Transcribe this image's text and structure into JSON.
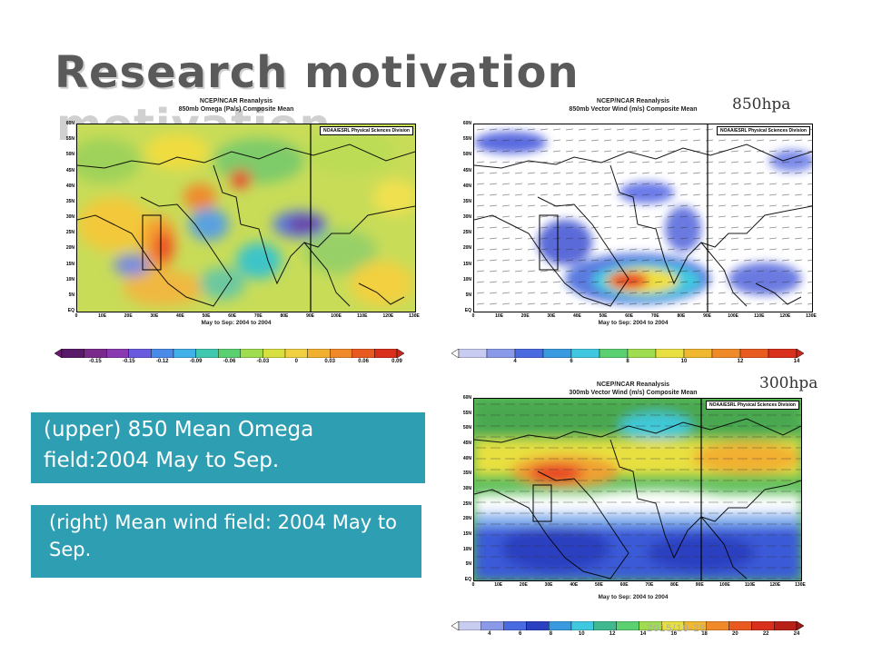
{
  "slide": {
    "title": "Research motivation",
    "label_850": "850hpa",
    "label_300": "300hpa",
    "caption_upper": "(upper) 850 Mean Omega field:2004 May to Sep.",
    "caption_right": "(right) Mean wind field: 2004 May to Sep.",
    "footer": "2015/10-28"
  },
  "panels": {
    "omega": {
      "title_line1": "NCEP/NCAR Reanalysis",
      "title_line2": "850mb Omega (Pa/s) Composite Mean",
      "credit": "NOAA/ESRL Physical Sciences Division",
      "period": "May to Sep: 2004 to 2004",
      "colorbar_labels": [
        "-0.15",
        "-0.15",
        "-0.12",
        "-0.09",
        "-0.06",
        "-0.03",
        "0",
        "0.03",
        "0.06",
        "0.09"
      ]
    },
    "wind850": {
      "title_line1": "NCEP/NCAR Reanalysis",
      "title_line2": "850mb Vector Wind (m/s) Composite Mean",
      "credit": "NOAA/ESRL Physical Sciences Division",
      "period": "May to Sep: 2004 to 2004",
      "colorbar_labels": [
        "4",
        "6",
        "8",
        "10",
        "12",
        "14"
      ]
    },
    "wind300": {
      "title_line1": "NCEP/NCAR Reanalysis",
      "title_line2": "300mb Vector Wind (m/s) Composite Mean",
      "credit": "NOAA/ESRL Physical Sciences Division",
      "period": "May to Sep: 2004 to 2004",
      "colorbar_labels": [
        "4",
        "6",
        "8",
        "10",
        "12",
        "14",
        "16",
        "18",
        "20",
        "22",
        "24"
      ]
    },
    "lat_labels": [
      "60N",
      "55N",
      "50N",
      "45N",
      "40N",
      "35N",
      "30N",
      "25N",
      "20N",
      "15N",
      "10N",
      "5N",
      "EQ"
    ],
    "lon_labels": [
      "0",
      "10E",
      "20E",
      "30E",
      "40E",
      "50E",
      "60E",
      "70E",
      "80E",
      "90E",
      "100E",
      "110E",
      "120E",
      "130E"
    ]
  },
  "colors": {
    "caption_bg": "#2e9fb3",
    "title": "#5a5a5a"
  }
}
